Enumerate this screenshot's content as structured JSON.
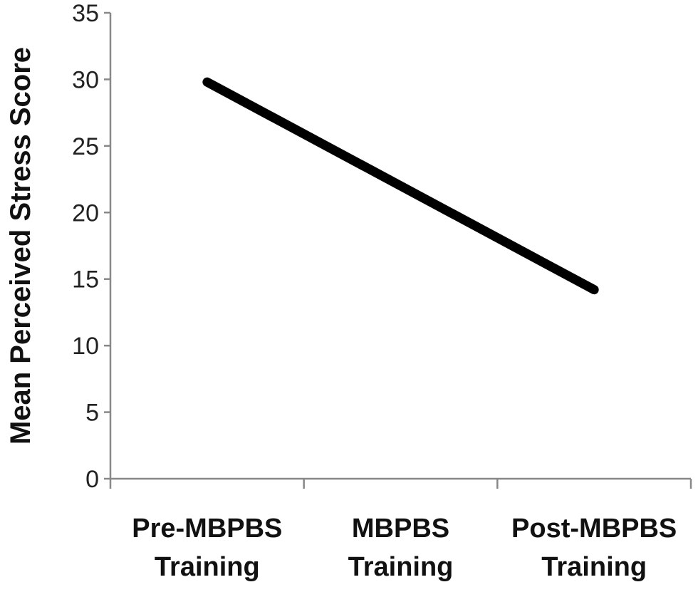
{
  "chart_data": {
    "type": "line",
    "title": "",
    "xlabel": "",
    "ylabel": "Mean Perceived Stress Score",
    "categories": [
      [
        "Pre-MBPBS",
        "Training"
      ],
      [
        "MBPBS",
        "Training"
      ],
      [
        "Post-MBPBS",
        "Training"
      ]
    ],
    "series": [
      {
        "values": [
          29.8,
          null,
          14.2
        ],
        "color": "#000000"
      }
    ],
    "ylim": [
      0,
      35
    ],
    "yticks": [
      "0",
      "5",
      "10",
      "15",
      "20",
      "25",
      "30",
      "35"
    ],
    "grid": false,
    "legend": "none"
  }
}
